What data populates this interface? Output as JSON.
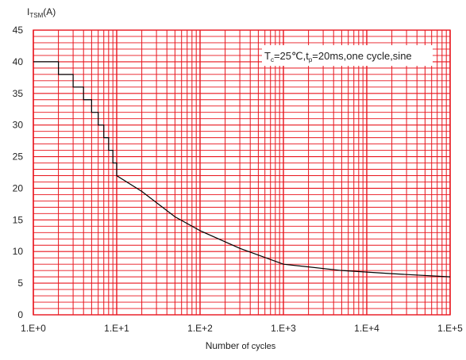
{
  "chart_data": {
    "type": "line",
    "x_scale": "log",
    "y_label": {
      "main": "I",
      "sub": "TSM",
      "tail": "(A)"
    },
    "x_label": {
      "main": "Number",
      "tail": " of cycles"
    },
    "annotation": {
      "t": "T",
      "t_sub": "c",
      "mid": "=25℃,t",
      "p_sub": "p",
      "tail": "=20ms,one cycle,sine"
    },
    "xlim": [
      1,
      100000
    ],
    "ylim": [
      0,
      45
    ],
    "x_ticks": [
      {
        "value": 1,
        "label": "1.E+0"
      },
      {
        "value": 10,
        "label": "1.E+1"
      },
      {
        "value": 100,
        "label": "1.E+2"
      },
      {
        "value": 1000,
        "label": "1.E+3"
      },
      {
        "value": 10000,
        "label": "1.E+4"
      },
      {
        "value": 100000,
        "label": "1.E+5"
      }
    ],
    "y_ticks": [
      0,
      5,
      10,
      15,
      20,
      25,
      30,
      35,
      40,
      45
    ],
    "y_minor_step": 1,
    "grid": true,
    "grid_color": "#e8141c",
    "line_color": "#000000",
    "series": [
      {
        "x": [
          1,
          2,
          2,
          3,
          3,
          4,
          4,
          5,
          5,
          6,
          6,
          7,
          7,
          8,
          8,
          9,
          9,
          10,
          10,
          20,
          50,
          100,
          300,
          1000,
          5000,
          20000,
          100000
        ],
        "y": [
          40,
          40,
          38,
          38,
          36,
          36,
          34,
          34,
          32,
          32,
          30,
          30,
          28,
          28,
          26,
          26,
          24,
          24,
          22,
          19.5,
          15.5,
          13.3,
          10.5,
          8,
          7,
          6.5,
          6
        ]
      }
    ]
  }
}
